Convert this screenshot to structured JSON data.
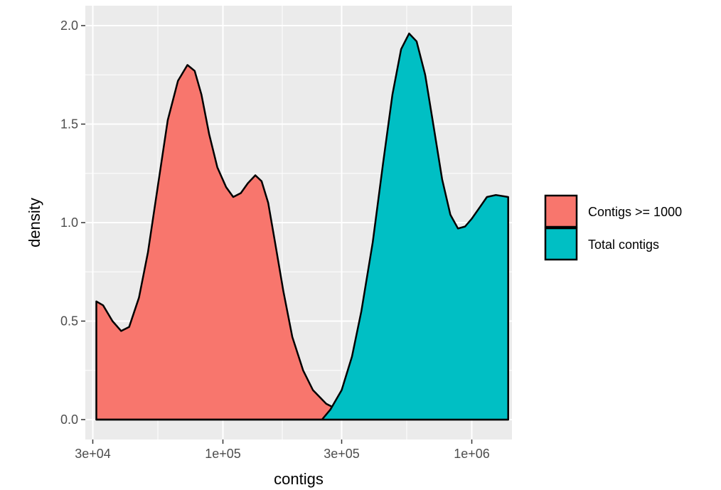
{
  "chart_data": {
    "type": "area",
    "x_scale": "log10",
    "xlabel": "contigs",
    "ylabel": "density",
    "xlim": [
      28000,
      1450000
    ],
    "ylim": [
      0,
      2.0
    ],
    "x_ticks": [
      {
        "value": 30000,
        "label": "3e+04"
      },
      {
        "value": 100000,
        "label": "1e+05"
      },
      {
        "value": 300000,
        "label": "3e+05"
      },
      {
        "value": 1000000,
        "label": "1e+06"
      }
    ],
    "y_ticks": [
      {
        "value": 0,
        "label": "0.0"
      },
      {
        "value": 0.5,
        "label": "0.5"
      },
      {
        "value": 1.0,
        "label": "1.0"
      },
      {
        "value": 1.5,
        "label": "1.5"
      },
      {
        "value": 2.0,
        "label": "2.0"
      }
    ],
    "grid": true,
    "legend_position": "right",
    "series": [
      {
        "name": "Contigs >= 1000",
        "color": "#F8766D",
        "points": [
          [
            31000,
            0.6
          ],
          [
            33000,
            0.58
          ],
          [
            36000,
            0.5
          ],
          [
            39000,
            0.45
          ],
          [
            42000,
            0.47
          ],
          [
            46000,
            0.62
          ],
          [
            50000,
            0.85
          ],
          [
            55000,
            1.2
          ],
          [
            60000,
            1.52
          ],
          [
            66000,
            1.72
          ],
          [
            72000,
            1.8
          ],
          [
            77000,
            1.77
          ],
          [
            82000,
            1.65
          ],
          [
            88000,
            1.45
          ],
          [
            95000,
            1.28
          ],
          [
            103000,
            1.18
          ],
          [
            110000,
            1.13
          ],
          [
            118000,
            1.15
          ],
          [
            126000,
            1.2
          ],
          [
            135000,
            1.24
          ],
          [
            143000,
            1.21
          ],
          [
            152000,
            1.1
          ],
          [
            162000,
            0.9
          ],
          [
            175000,
            0.65
          ],
          [
            190000,
            0.42
          ],
          [
            210000,
            0.25
          ],
          [
            230000,
            0.15
          ],
          [
            260000,
            0.08
          ],
          [
            300000,
            0.04
          ],
          [
            350000,
            0.015
          ],
          [
            420000,
            0.005
          ],
          [
            500000,
            0.0
          ],
          [
            1400000,
            0.0
          ]
        ]
      },
      {
        "name": "Total contigs",
        "color": "#00BFC4",
        "points": [
          [
            31000,
            0.0
          ],
          [
            250000,
            0.0
          ],
          [
            270000,
            0.05
          ],
          [
            300000,
            0.15
          ],
          [
            330000,
            0.32
          ],
          [
            360000,
            0.55
          ],
          [
            400000,
            0.9
          ],
          [
            440000,
            1.3
          ],
          [
            480000,
            1.65
          ],
          [
            520000,
            1.88
          ],
          [
            560000,
            1.96
          ],
          [
            600000,
            1.92
          ],
          [
            650000,
            1.75
          ],
          [
            700000,
            1.5
          ],
          [
            760000,
            1.22
          ],
          [
            820000,
            1.04
          ],
          [
            880000,
            0.97
          ],
          [
            940000,
            0.98
          ],
          [
            1000000,
            1.02
          ],
          [
            1080000,
            1.08
          ],
          [
            1150000,
            1.13
          ],
          [
            1250000,
            1.14
          ],
          [
            1400000,
            1.13
          ]
        ]
      }
    ]
  }
}
